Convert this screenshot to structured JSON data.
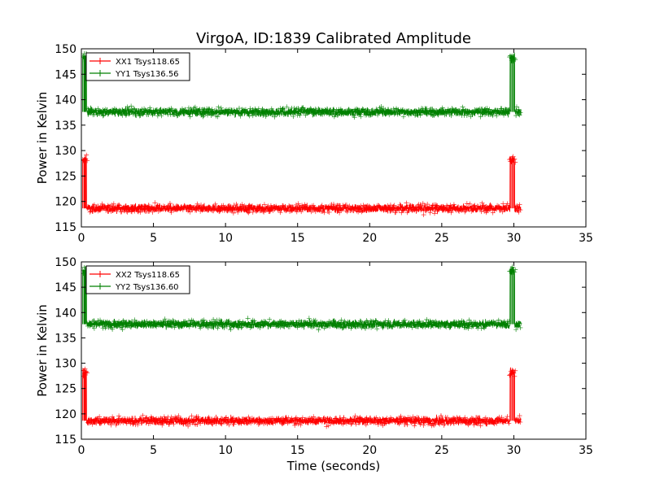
{
  "chart_data": {
    "title": "VirgoA, ID:1839 Calibrated Amplitude",
    "xlabel": "Time (seconds)",
    "panels": [
      {
        "type": "line",
        "ylabel": "Power in Kelvin",
        "xlim": [
          0,
          35
        ],
        "ylim": [
          115,
          150
        ],
        "xticks": [
          "0",
          "5",
          "10",
          "15",
          "20",
          "25",
          "30",
          "35"
        ],
        "yticks": [
          "115",
          "120",
          "125",
          "130",
          "135",
          "140",
          "145",
          "150"
        ],
        "legend_position": "top-left",
        "series": [
          {
            "name": "XX1 Tsys118.65",
            "color": "#ff0000",
            "baseline": 118.65,
            "noise": 0.8,
            "spike_level": 128.2,
            "x_start": 0.1,
            "x_end": 30.5,
            "spike_times": [
              0.1,
              0.2,
              0.25,
              0.3,
              29.8,
              29.9,
              30.0
            ]
          },
          {
            "name": "YY1 Tsys136.56",
            "color": "#008000",
            "baseline": 137.6,
            "noise": 0.8,
            "spike_level": 148.3,
            "x_start": 0.1,
            "x_end": 30.5,
            "spike_times": [
              0.1,
              0.2,
              0.25,
              0.3,
              29.8,
              29.9,
              30.0
            ]
          }
        ]
      },
      {
        "type": "line",
        "ylabel": "Power in Kelvin",
        "xlim": [
          0,
          35
        ],
        "ylim": [
          115,
          150
        ],
        "xticks": [
          "0",
          "5",
          "10",
          "15",
          "20",
          "25",
          "30",
          "35"
        ],
        "yticks": [
          "115",
          "120",
          "125",
          "130",
          "135",
          "140",
          "145",
          "150"
        ],
        "legend_position": "top-left",
        "series": [
          {
            "name": "XX2 Tsys118.65",
            "color": "#ff0000",
            "baseline": 118.65,
            "noise": 0.8,
            "spike_level": 128.2,
            "x_start": 0.1,
            "x_end": 30.5,
            "spike_times": [
              0.1,
              0.2,
              0.25,
              0.3,
              29.8,
              29.9,
              30.0
            ]
          },
          {
            "name": "YY2 Tsys136.60",
            "color": "#008000",
            "baseline": 137.7,
            "noise": 0.8,
            "spike_level": 148.3,
            "x_start": 0.1,
            "x_end": 30.5,
            "spike_times": [
              0.1,
              0.2,
              0.25,
              0.3,
              29.8,
              29.9,
              30.0
            ]
          }
        ]
      }
    ]
  }
}
